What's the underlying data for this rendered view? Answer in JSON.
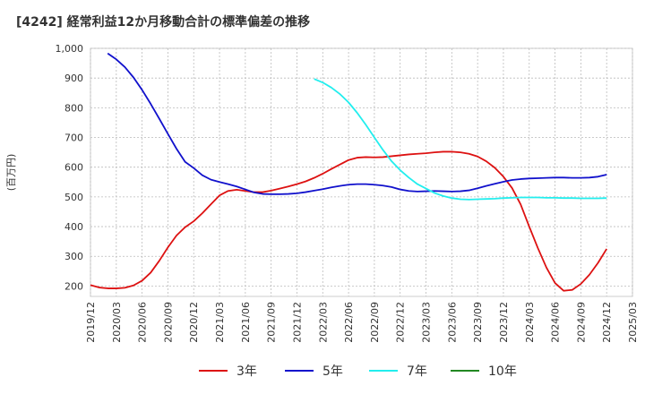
{
  "chart_data": {
    "type": "line",
    "title": "[4242]  経常利益12か月移動合計の標準偏差の推移",
    "ylabel": "(百万円)",
    "xlabel": "",
    "ylim": [
      165,
      1000
    ],
    "yticks": [
      200,
      300,
      400,
      500,
      600,
      700,
      800,
      900,
      1000
    ],
    "ytick_labels": [
      "200",
      "300",
      "400",
      "500",
      "600",
      "700",
      "800",
      "900",
      "1,000"
    ],
    "xticks": [
      "2019/12",
      "2020/03",
      "2020/06",
      "2020/09",
      "2020/12",
      "2021/03",
      "2021/06",
      "2021/09",
      "2021/12",
      "2022/03",
      "2022/06",
      "2022/09",
      "2022/12",
      "2023/03",
      "2023/06",
      "2023/09",
      "2023/12",
      "2024/03",
      "2024/06",
      "2024/09",
      "2024/12",
      "2025/03"
    ],
    "x_start": "2019/12",
    "grid": true,
    "legend_position": "bottom",
    "series": [
      {
        "name": "3年",
        "color": "#dd1111",
        "points": [
          [
            "2019/12",
            203
          ],
          [
            "2020/01",
            195
          ],
          [
            "2020/02",
            192
          ],
          [
            "2020/03",
            192
          ],
          [
            "2020/04",
            194
          ],
          [
            "2020/05",
            202
          ],
          [
            "2020/06",
            218
          ],
          [
            "2020/07",
            245
          ],
          [
            "2020/08",
            285
          ],
          [
            "2020/09",
            330
          ],
          [
            "2020/10",
            370
          ],
          [
            "2020/11",
            398
          ],
          [
            "2020/12",
            418
          ],
          [
            "2021/01",
            445
          ],
          [
            "2021/02",
            475
          ],
          [
            "2021/03",
            505
          ],
          [
            "2021/04",
            520
          ],
          [
            "2021/05",
            524
          ],
          [
            "2021/06",
            520
          ],
          [
            "2021/07",
            516
          ],
          [
            "2021/08",
            516
          ],
          [
            "2021/09",
            521
          ],
          [
            "2021/10",
            528
          ],
          [
            "2021/11",
            535
          ],
          [
            "2021/12",
            543
          ],
          [
            "2022/01",
            552
          ],
          [
            "2022/02",
            564
          ],
          [
            "2022/03",
            578
          ],
          [
            "2022/04",
            594
          ],
          [
            "2022/05",
            609
          ],
          [
            "2022/06",
            624
          ],
          [
            "2022/07",
            632
          ],
          [
            "2022/08",
            634
          ],
          [
            "2022/09",
            633
          ],
          [
            "2022/10",
            634
          ],
          [
            "2022/11",
            637
          ],
          [
            "2022/12",
            640
          ],
          [
            "2023/01",
            643
          ],
          [
            "2023/02",
            645
          ],
          [
            "2023/03",
            647
          ],
          [
            "2023/04",
            650
          ],
          [
            "2023/05",
            652
          ],
          [
            "2023/06",
            652
          ],
          [
            "2023/07",
            650
          ],
          [
            "2023/08",
            645
          ],
          [
            "2023/09",
            636
          ],
          [
            "2023/10",
            620
          ],
          [
            "2023/11",
            598
          ],
          [
            "2023/12",
            568
          ],
          [
            "2024/01",
            530
          ],
          [
            "2024/02",
            475
          ],
          [
            "2024/03",
            400
          ],
          [
            "2024/04",
            328
          ],
          [
            "2024/05",
            262
          ],
          [
            "2024/06",
            210
          ],
          [
            "2024/07",
            184
          ],
          [
            "2024/08",
            187
          ],
          [
            "2024/09",
            207
          ],
          [
            "2024/10",
            238
          ],
          [
            "2024/11",
            278
          ],
          [
            "2024/12",
            325
          ]
        ]
      },
      {
        "name": "5年",
        "color": "#1111cc",
        "points": [
          [
            "2020/02",
            983
          ],
          [
            "2020/03",
            963
          ],
          [
            "2020/04",
            937
          ],
          [
            "2020/05",
            902
          ],
          [
            "2020/06",
            860
          ],
          [
            "2020/07",
            813
          ],
          [
            "2020/08",
            763
          ],
          [
            "2020/09",
            712
          ],
          [
            "2020/10",
            662
          ],
          [
            "2020/11",
            618
          ],
          [
            "2020/12",
            597
          ],
          [
            "2021/01",
            573
          ],
          [
            "2021/02",
            558
          ],
          [
            "2021/03",
            550
          ],
          [
            "2021/04",
            543
          ],
          [
            "2021/05",
            535
          ],
          [
            "2021/06",
            525
          ],
          [
            "2021/07",
            515
          ],
          [
            "2021/08",
            510
          ],
          [
            "2021/09",
            509
          ],
          [
            "2021/10",
            509
          ],
          [
            "2021/11",
            510
          ],
          [
            "2021/12",
            512
          ],
          [
            "2022/01",
            516
          ],
          [
            "2022/02",
            521
          ],
          [
            "2022/03",
            526
          ],
          [
            "2022/04",
            532
          ],
          [
            "2022/05",
            537
          ],
          [
            "2022/06",
            541
          ],
          [
            "2022/07",
            543
          ],
          [
            "2022/08",
            543
          ],
          [
            "2022/09",
            541
          ],
          [
            "2022/10",
            538
          ],
          [
            "2022/11",
            533
          ],
          [
            "2022/12",
            525
          ],
          [
            "2023/01",
            520
          ],
          [
            "2023/02",
            518
          ],
          [
            "2023/03",
            519
          ],
          [
            "2023/04",
            520
          ],
          [
            "2023/05",
            519
          ],
          [
            "2023/06",
            518
          ],
          [
            "2023/07",
            519
          ],
          [
            "2023/08",
            522
          ],
          [
            "2023/09",
            529
          ],
          [
            "2023/10",
            537
          ],
          [
            "2023/11",
            544
          ],
          [
            "2023/12",
            551
          ],
          [
            "2024/01",
            557
          ],
          [
            "2024/02",
            560
          ],
          [
            "2024/03",
            562
          ],
          [
            "2024/04",
            563
          ],
          [
            "2024/05",
            564
          ],
          [
            "2024/06",
            565
          ],
          [
            "2024/07",
            565
          ],
          [
            "2024/08",
            564
          ],
          [
            "2024/09",
            564
          ],
          [
            "2024/10",
            565
          ],
          [
            "2024/11",
            568
          ],
          [
            "2024/12",
            575
          ]
        ]
      },
      {
        "name": "7年",
        "color": "#22eeee",
        "points": [
          [
            "2022/02",
            897
          ],
          [
            "2022/03",
            885
          ],
          [
            "2022/04",
            868
          ],
          [
            "2022/05",
            846
          ],
          [
            "2022/06",
            818
          ],
          [
            "2022/07",
            783
          ],
          [
            "2022/08",
            743
          ],
          [
            "2022/09",
            700
          ],
          [
            "2022/10",
            658
          ],
          [
            "2022/11",
            620
          ],
          [
            "2022/12",
            590
          ],
          [
            "2023/01",
            565
          ],
          [
            "2023/02",
            543
          ],
          [
            "2023/03",
            528
          ],
          [
            "2023/04",
            513
          ],
          [
            "2023/05",
            503
          ],
          [
            "2023/06",
            496
          ],
          [
            "2023/07",
            492
          ],
          [
            "2023/08",
            491
          ],
          [
            "2023/09",
            492
          ],
          [
            "2023/10",
            493
          ],
          [
            "2023/11",
            494
          ],
          [
            "2023/12",
            496
          ],
          [
            "2024/01",
            497
          ],
          [
            "2024/02",
            498
          ],
          [
            "2024/03",
            498
          ],
          [
            "2024/04",
            498
          ],
          [
            "2024/05",
            497
          ],
          [
            "2024/06",
            497
          ],
          [
            "2024/07",
            496
          ],
          [
            "2024/08",
            496
          ],
          [
            "2024/09",
            495
          ],
          [
            "2024/10",
            495
          ],
          [
            "2024/11",
            495
          ],
          [
            "2024/12",
            496
          ]
        ]
      },
      {
        "name": "10年",
        "color": "#228822",
        "points": []
      }
    ]
  }
}
